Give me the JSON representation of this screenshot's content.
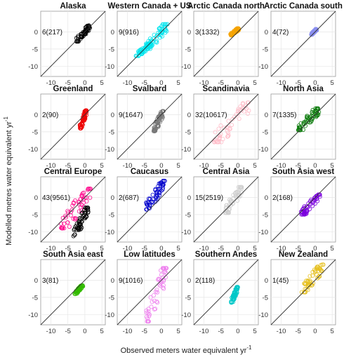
{
  "figure": {
    "ylabel": "Modelled metres water equivalent yr",
    "ylabel_sup": "-1",
    "xlabel": "Observed meters water equivalent yr",
    "xlabel_sup": "-1"
  },
  "chart_data": {
    "type": "scatter",
    "layout": "4x4 grid of panels",
    "shared_xlim": [
      -13,
      6
    ],
    "shared_ylim": [
      -13,
      6
    ],
    "x_ticks": [
      -10,
      -5,
      0,
      5
    ],
    "y_ticks": [
      -10,
      -5,
      0
    ],
    "reference_line": "1:1",
    "grid": true,
    "marker": "open circle",
    "panels": [
      {
        "title": "Alaska",
        "count_label": "6(217)",
        "color": "#000000",
        "clusters": [
          {
            "x": [
              -2.5,
              1.5
            ],
            "y": [
              -2.8,
              1.8
            ]
          }
        ]
      },
      {
        "title": "Western Canada + US",
        "count_label": "9(916)",
        "color": "#00e5ee",
        "clusters": [
          {
            "x": [
              -4.5,
              1.8
            ],
            "y": [
              -5.0,
              2.2
            ]
          },
          {
            "x": [
              -7.5,
              -3.0
            ],
            "y": [
              -7.0,
              -3.5
            ]
          }
        ]
      },
      {
        "title": "Arctic Canada north",
        "count_label": "3(1332)",
        "color": "#f5a300",
        "clusters": [
          {
            "x": [
              -2.2,
              0.3
            ],
            "y": [
              -1.0,
              1.0
            ]
          }
        ]
      },
      {
        "title": "Arctic Canada south",
        "count_label": "4(72)",
        "color": "#8a8ff0",
        "clusters": [
          {
            "x": [
              -1.2,
              0.5
            ],
            "y": [
              -0.8,
              0.8
            ]
          }
        ]
      },
      {
        "title": "Greenland",
        "count_label": "2(90)",
        "color": "#ee0000",
        "clusters": [
          {
            "x": [
              -1.5,
              0.5
            ],
            "y": [
              -4.0,
              1.2
            ]
          }
        ]
      },
      {
        "title": "Svalbard",
        "count_label": "9(1647)",
        "color": "#777777",
        "clusters": [
          {
            "x": [
              -2.3,
              0.6
            ],
            "y": [
              -4.8,
              1.0
            ]
          }
        ]
      },
      {
        "title": "Scandinavia",
        "count_label": "32(10617)",
        "color": "#ffbcc8",
        "clusters": [
          {
            "x": [
              -7.0,
              3.5
            ],
            "y": [
              -8.0,
              3.5
            ]
          }
        ]
      },
      {
        "title": "North Asia",
        "count_label": "7(1335)",
        "color": "#0a7a0a",
        "clusters": [
          {
            "x": [
              -5.0,
              1.2
            ],
            "y": [
              -4.5,
              1.8
            ]
          }
        ]
      },
      {
        "title": "Central Europe",
        "count_label": "43(9561)",
        "color": "#ff0f8f",
        "secondary_color": "#000000",
        "clusters": [
          {
            "x": [
              -7.0,
              2.0
            ],
            "y": [
              -9.0,
              2.5
            ]
          },
          {
            "x": [
              -3.5,
              1.0
            ],
            "y": [
              -11.5,
              -3.0
            ]
          }
        ]
      },
      {
        "title": "Caucasus",
        "count_label": "2(687)",
        "color": "#0000cc",
        "clusters": [
          {
            "x": [
              -4.5,
              1.0
            ],
            "y": [
              -3.5,
              4.8
            ]
          }
        ]
      },
      {
        "title": "Central Asia",
        "count_label": "15(2519)",
        "color": "#cfcfcf",
        "clusters": [
          {
            "x": [
              -3.8,
              1.2
            ],
            "y": [
              -4.5,
              3.0
            ]
          }
        ]
      },
      {
        "title": "South Asia west",
        "count_label": "2(168)",
        "color": "#7a00dd",
        "clusters": [
          {
            "x": [
              -4.2,
              1.5
            ],
            "y": [
              -5.0,
              0.8
            ]
          }
        ]
      },
      {
        "title": "South Asia east",
        "count_label": "3(81)",
        "color": "#33bb00",
        "clusters": [
          {
            "x": [
              -3.0,
              -0.5
            ],
            "y": [
              -4.0,
              -1.5
            ]
          }
        ]
      },
      {
        "title": "Low latitudes",
        "count_label": "9(1016)",
        "color": "#ee82ee",
        "clusters": [
          {
            "x": [
              -4.5,
              1.5
            ],
            "y": [
              -12.0,
              3.5
            ]
          }
        ]
      },
      {
        "title": "Southern Andes",
        "count_label": "2(118)",
        "color": "#00c8c8",
        "clusters": [
          {
            "x": [
              -2.0,
              0.0
            ],
            "y": [
              -6.5,
              -2.0
            ]
          }
        ]
      },
      {
        "title": "New Zealand",
        "count_label": "1(45)",
        "color": "#e6c020",
        "clusters": [
          {
            "x": [
              -4.0,
              2.5
            ],
            "y": [
              -3.5,
              4.5
            ]
          }
        ]
      }
    ]
  }
}
